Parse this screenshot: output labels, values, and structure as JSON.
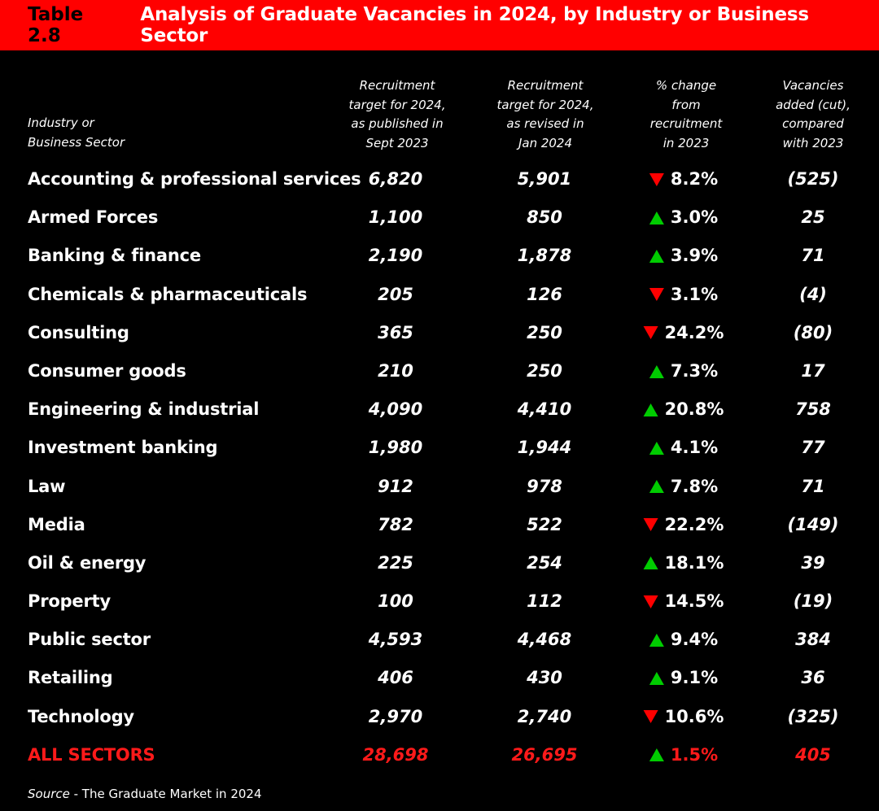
{
  "title": {
    "table_number": "Table 2.8",
    "text": "Analysis of Graduate Vacancies in 2024, by Industry or Business Sector"
  },
  "headers": {
    "sector": [
      "Industry or",
      "Business Sector"
    ],
    "col1": [
      "Recruitment",
      "target for 2024,",
      "as published in",
      "Sept 2023"
    ],
    "col2": [
      "Recruitment",
      "target for 2024,",
      "as revised in",
      "Jan 2024"
    ],
    "col3": [
      "% change",
      "from",
      "recruitment",
      "in 2023"
    ],
    "col4": [
      "Vacancies",
      "added (cut),",
      "compared",
      "with 2023"
    ]
  },
  "colors": {
    "accent": "#ff0000",
    "up": "#00cc00",
    "down": "#ff0000",
    "background": "#000000"
  },
  "rows": [
    {
      "sector": "Accounting & professional services",
      "sept2023": "6,820",
      "jan2024": "5,901",
      "direction": "down",
      "change": "8.2%",
      "vacancies": "(525)"
    },
    {
      "sector": "Armed Forces",
      "sept2023": "1,100",
      "jan2024": "850",
      "direction": "up",
      "change": "3.0%",
      "vacancies": "25"
    },
    {
      "sector": "Banking & finance",
      "sept2023": "2,190",
      "jan2024": "1,878",
      "direction": "up",
      "change": "3.9%",
      "vacancies": "71"
    },
    {
      "sector": "Chemicals & pharmaceuticals",
      "sept2023": "205",
      "jan2024": "126",
      "direction": "down",
      "change": "3.1%",
      "vacancies": "(4)"
    },
    {
      "sector": "Consulting",
      "sept2023": "365",
      "jan2024": "250",
      "direction": "down",
      "change": "24.2%",
      "vacancies": "(80)"
    },
    {
      "sector": "Consumer goods",
      "sept2023": "210",
      "jan2024": "250",
      "direction": "up",
      "change": "7.3%",
      "vacancies": "17"
    },
    {
      "sector": "Engineering & industrial",
      "sept2023": "4,090",
      "jan2024": "4,410",
      "direction": "up",
      "change": "20.8%",
      "vacancies": "758"
    },
    {
      "sector": "Investment banking",
      "sept2023": "1,980",
      "jan2024": "1,944",
      "direction": "up",
      "change": "4.1%",
      "vacancies": "77"
    },
    {
      "sector": "Law",
      "sept2023": "912",
      "jan2024": "978",
      "direction": "up",
      "change": "7.8%",
      "vacancies": "71"
    },
    {
      "sector": "Media",
      "sept2023": "782",
      "jan2024": "522",
      "direction": "down",
      "change": "22.2%",
      "vacancies": "(149)"
    },
    {
      "sector": "Oil & energy",
      "sept2023": "225",
      "jan2024": "254",
      "direction": "up",
      "change": "18.1%",
      "vacancies": "39"
    },
    {
      "sector": "Property",
      "sept2023": "100",
      "jan2024": "112",
      "direction": "down",
      "change": "14.5%",
      "vacancies": "(19)"
    },
    {
      "sector": "Public sector",
      "sept2023": "4,593",
      "jan2024": "4,468",
      "direction": "up",
      "change": "9.4%",
      "vacancies": "384"
    },
    {
      "sector": "Retailing",
      "sept2023": "406",
      "jan2024": "430",
      "direction": "up",
      "change": "9.1%",
      "vacancies": "36"
    },
    {
      "sector": "Technology",
      "sept2023": "2,970",
      "jan2024": "2,740",
      "direction": "down",
      "change": "10.6%",
      "vacancies": "(325)"
    }
  ],
  "total": {
    "sector": "ALL SECTORS",
    "sept2023": "28,698",
    "jan2024": "26,695",
    "direction": "up",
    "change": "1.5%",
    "vacancies": "405"
  },
  "source": {
    "label": "Source",
    "text": " - The Graduate Market in 2024"
  }
}
